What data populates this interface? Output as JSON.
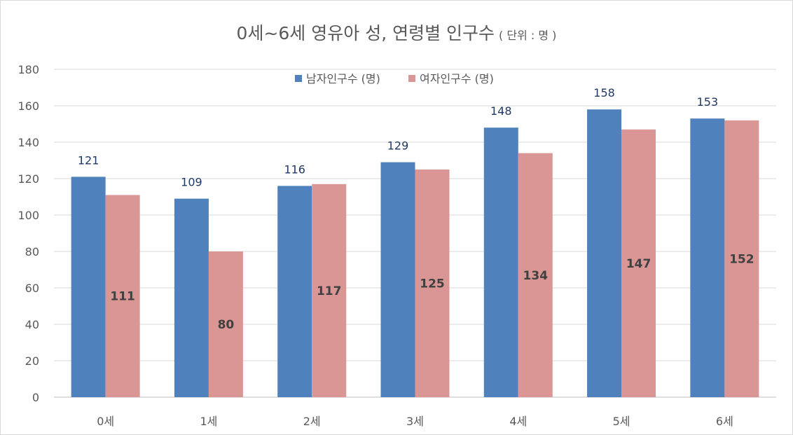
{
  "chart_data": {
    "type": "bar",
    "title": "0세~6세 영유아 성, 연령별 인구수",
    "subtitle": "( 단위 : 명 )",
    "categories": [
      "0세",
      "1세",
      "2세",
      "3세",
      "4세",
      "5세",
      "6세"
    ],
    "series": [
      {
        "name": "남자인구수 (명)",
        "values": [
          121,
          109,
          116,
          129,
          148,
          158,
          153
        ],
        "color": "#4f81bd",
        "label_position": "outside_end"
      },
      {
        "name": "여자인구수 (명)",
        "values": [
          111,
          80,
          117,
          125,
          134,
          147,
          152
        ],
        "color": "#d99694",
        "label_position": "center"
      }
    ],
    "xlabel": "",
    "ylabel": "",
    "ylim": [
      0,
      180
    ],
    "yticks": [
      0,
      20,
      40,
      60,
      80,
      100,
      120,
      140,
      160,
      180
    ],
    "grid": true,
    "legend": "top"
  }
}
